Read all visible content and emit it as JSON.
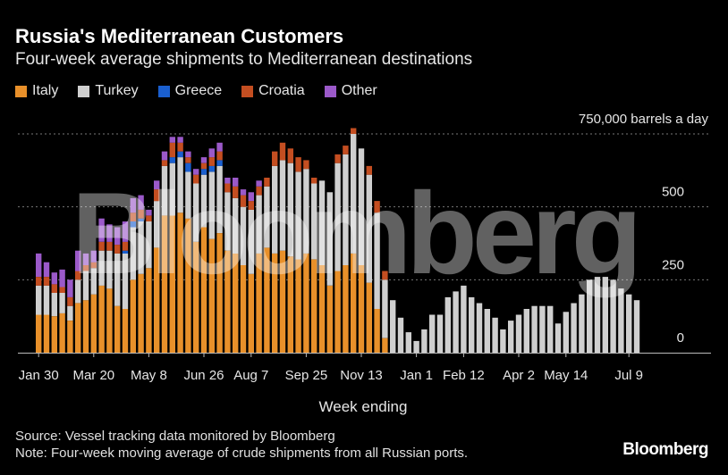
{
  "watermark": "Bloomberg",
  "brand": "Bloomberg",
  "footer": {
    "source": "Source: Vessel tracking data monitored by Bloomberg",
    "note": "Note: Four-week moving average of crude shipments from all Russian ports."
  },
  "chart_data": {
    "type": "bar",
    "stacked": true,
    "title": "Russia's Mediterranean Customers",
    "subtitle": "Four-week average shipments to Mediterranean destinations",
    "xlabel": "Week ending",
    "ylabel": "",
    "y_unit_label": "750,000 barrels a day",
    "ylim": [
      0,
      750000
    ],
    "yticks": [
      {
        "value": 0,
        "label": "0"
      },
      {
        "value": 250000,
        "label": "250"
      },
      {
        "value": 500000,
        "label": "500"
      },
      {
        "value": 750000,
        "label": "750,000 barrels a day"
      }
    ],
    "grid": true,
    "legend_position": "top-left",
    "xtick_labels": [
      {
        "index": 0,
        "label": "Jan 30"
      },
      {
        "index": 7,
        "label": "Mar 20"
      },
      {
        "index": 14,
        "label": "May 8"
      },
      {
        "index": 21,
        "label": "Jun 26"
      },
      {
        "index": 27,
        "label": "Aug 7"
      },
      {
        "index": 34,
        "label": "Sep 25"
      },
      {
        "index": 41,
        "label": "Nov 13"
      },
      {
        "index": 48,
        "label": "Jan 1"
      },
      {
        "index": 54,
        "label": "Feb 12"
      },
      {
        "index": 61,
        "label": "Apr 2"
      },
      {
        "index": 67,
        "label": "May 14"
      },
      {
        "index": 75,
        "label": "Jul 9"
      }
    ],
    "categories_count": 77,
    "series": [
      {
        "name": "Italy",
        "color": "#e8902a",
        "values": [
          130000,
          130000,
          125000,
          135000,
          110000,
          170000,
          180000,
          200000,
          230000,
          220000,
          160000,
          150000,
          250000,
          270000,
          290000,
          360000,
          470000,
          470000,
          480000,
          460000,
          380000,
          430000,
          390000,
          410000,
          350000,
          340000,
          300000,
          270000,
          340000,
          360000,
          340000,
          350000,
          330000,
          320000,
          340000,
          320000,
          300000,
          230000,
          280000,
          300000,
          340000,
          300000,
          240000,
          150000,
          50000,
          0,
          0,
          0,
          0,
          0,
          0,
          0,
          0,
          0,
          0,
          0,
          0,
          0,
          0,
          0,
          0,
          0,
          0,
          0,
          0,
          0,
          0,
          0,
          0,
          0,
          0,
          0,
          0,
          0,
          0,
          0,
          0
        ]
      },
      {
        "name": "Turkey",
        "color": "#cfcfcf",
        "values": [
          100000,
          100000,
          80000,
          70000,
          50000,
          80000,
          100000,
          90000,
          120000,
          130000,
          180000,
          190000,
          180000,
          180000,
          160000,
          160000,
          170000,
          180000,
          190000,
          160000,
          200000,
          180000,
          230000,
          230000,
          200000,
          190000,
          200000,
          220000,
          200000,
          210000,
          300000,
          310000,
          320000,
          300000,
          290000,
          260000,
          290000,
          320000,
          370000,
          380000,
          410000,
          400000,
          370000,
          330000,
          200000,
          180000,
          120000,
          70000,
          40000,
          80000,
          130000,
          130000,
          190000,
          210000,
          230000,
          190000,
          170000,
          150000,
          120000,
          80000,
          110000,
          130000,
          150000,
          160000,
          160000,
          160000,
          100000,
          140000,
          170000,
          200000,
          250000,
          260000,
          260000,
          250000,
          220000,
          200000,
          180000
        ]
      },
      {
        "name": "Greece",
        "color": "#1a5fcf",
        "values": [
          0,
          0,
          0,
          0,
          0,
          0,
          0,
          0,
          0,
          0,
          0,
          10000,
          20000,
          10000,
          0,
          0,
          0,
          20000,
          20000,
          30000,
          0,
          20000,
          20000,
          20000,
          0,
          0,
          0,
          0,
          0,
          0,
          0,
          0,
          0,
          0,
          0,
          0,
          0,
          0,
          0,
          0,
          0,
          0,
          0,
          0,
          0,
          0,
          0,
          0,
          0,
          0,
          0,
          0,
          0,
          0,
          0,
          0,
          0,
          0,
          0,
          0,
          0,
          0,
          0,
          0,
          0,
          0,
          0,
          0,
          0,
          0,
          0,
          0,
          0,
          0,
          0,
          0,
          0
        ]
      },
      {
        "name": "Croatia",
        "color": "#c44e21",
        "values": [
          30000,
          30000,
          30000,
          20000,
          30000,
          30000,
          20000,
          20000,
          30000,
          30000,
          30000,
          30000,
          30000,
          30000,
          20000,
          40000,
          20000,
          50000,
          30000,
          20000,
          30000,
          20000,
          30000,
          30000,
          30000,
          40000,
          40000,
          30000,
          30000,
          30000,
          50000,
          60000,
          50000,
          50000,
          30000,
          20000,
          0,
          0,
          30000,
          30000,
          20000,
          0,
          30000,
          40000,
          30000,
          0,
          0,
          0,
          0,
          0,
          0,
          0,
          0,
          0,
          0,
          0,
          0,
          0,
          0,
          0,
          0,
          0,
          0,
          0,
          0,
          0,
          0,
          0,
          0,
          0,
          0,
          0,
          0,
          0,
          0,
          0,
          0
        ]
      },
      {
        "name": "Other",
        "color": "#9b59c9",
        "values": [
          80000,
          50000,
          40000,
          60000,
          60000,
          70000,
          40000,
          40000,
          80000,
          60000,
          60000,
          70000,
          50000,
          50000,
          20000,
          30000,
          30000,
          20000,
          20000,
          20000,
          20000,
          20000,
          30000,
          30000,
          20000,
          30000,
          20000,
          30000,
          20000,
          0,
          0,
          0,
          0,
          0,
          0,
          0,
          0,
          0,
          0,
          0,
          0,
          0,
          0,
          0,
          0,
          0,
          0,
          0,
          0,
          0,
          0,
          0,
          0,
          0,
          0,
          0,
          0,
          0,
          0,
          0,
          0,
          0,
          0,
          0,
          0,
          0,
          0,
          0,
          0,
          0,
          0,
          0,
          0,
          0,
          0,
          0,
          0
        ]
      }
    ]
  }
}
